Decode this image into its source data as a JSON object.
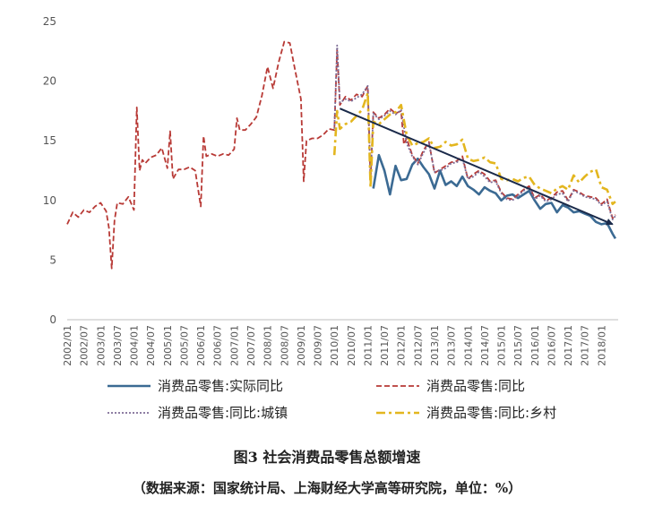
{
  "caption": {
    "title": "图3 社会消费品零售总额增速",
    "source": "（数据来源：国家统计局、上海财经大学高等研究院，单位：%）"
  },
  "chart_data": {
    "type": "line",
    "ylim": [
      0,
      25
    ],
    "yticks": [
      0,
      5,
      10,
      15,
      20,
      25
    ],
    "xlim": [
      "2002/01",
      "2018/07"
    ],
    "xticks": [
      "2002/01",
      "2002/07",
      "2003/01",
      "2003/07",
      "2004/01",
      "2004/07",
      "2005/01",
      "2005/07",
      "2006/01",
      "2006/07",
      "2007/01",
      "2007/07",
      "2008/01",
      "2008/07",
      "2009/01",
      "2009/07",
      "2010/01",
      "2010/07",
      "2011/01",
      "2011/07",
      "2012/01",
      "2012/07",
      "2013/01",
      "2013/07",
      "2014/01",
      "2014/07",
      "2015/01",
      "2015/07",
      "2016/01",
      "2016/07",
      "2017/01",
      "2017/07",
      "2018/01"
    ],
    "series": [
      {
        "name": "消费品零售:实际同比",
        "color": "#3b6a93",
        "dash": "solid",
        "x": [
          "2011/03",
          "2011/05",
          "2011/07",
          "2011/09",
          "2011/11",
          "2012/01",
          "2012/03",
          "2012/05",
          "2012/07",
          "2012/09",
          "2012/11",
          "2013/01",
          "2013/03",
          "2013/05",
          "2013/07",
          "2013/09",
          "2013/11",
          "2014/01",
          "2014/03",
          "2014/05",
          "2014/07",
          "2014/09",
          "2014/11",
          "2015/01",
          "2015/03",
          "2015/05",
          "2015/07",
          "2015/09",
          "2015/11",
          "2016/01",
          "2016/03",
          "2016/05",
          "2016/07",
          "2016/09",
          "2016/11",
          "2017/01",
          "2017/03",
          "2017/05",
          "2017/07",
          "2017/09",
          "2017/11",
          "2018/01",
          "2018/03",
          "2018/05",
          "2018/06"
        ],
        "y": [
          11.0,
          13.8,
          12.5,
          10.5,
          12.9,
          11.7,
          11.8,
          13.0,
          13.5,
          12.8,
          12.2,
          11.0,
          12.5,
          11.3,
          11.6,
          11.2,
          12.0,
          11.2,
          10.9,
          10.5,
          11.1,
          10.8,
          10.6,
          10.0,
          10.4,
          10.5,
          10.2,
          10.5,
          10.8,
          10.0,
          9.3,
          9.7,
          9.8,
          9.0,
          9.6,
          9.4,
          9.0,
          9.1,
          8.9,
          8.7,
          8.2,
          8.0,
          8.1,
          7.2,
          6.8
        ]
      },
      {
        "name": "消费品零售:同比",
        "color": "#b83a36",
        "dash": "dashed",
        "x": [
          "2002/01",
          "2002/03",
          "2002/05",
          "2002/07",
          "2002/09",
          "2002/11",
          "2003/01",
          "2003/03",
          "2003/04",
          "2003/05",
          "2003/06",
          "2003/07",
          "2003/09",
          "2003/11",
          "2004/01",
          "2004/02",
          "2004/03",
          "2004/04",
          "2004/05",
          "2004/07",
          "2004/09",
          "2004/11",
          "2005/01",
          "2005/02",
          "2005/03",
          "2005/05",
          "2005/07",
          "2005/09",
          "2005/11",
          "2006/01",
          "2006/02",
          "2006/03",
          "2006/05",
          "2006/07",
          "2006/09",
          "2006/11",
          "2007/01",
          "2007/02",
          "2007/03",
          "2007/05",
          "2007/07",
          "2007/09",
          "2007/11",
          "2008/01",
          "2008/03",
          "2008/05",
          "2008/07",
          "2008/09",
          "2008/11",
          "2009/01",
          "2009/02",
          "2009/03",
          "2009/05",
          "2009/07",
          "2009/09",
          "2009/11",
          "2010/01",
          "2010/02",
          "2010/03",
          "2010/05",
          "2010/07",
          "2010/09",
          "2010/11",
          "2011/01",
          "2011/02",
          "2011/03",
          "2011/05",
          "2011/07",
          "2011/09",
          "2011/11",
          "2012/01",
          "2012/02",
          "2012/03",
          "2012/05",
          "2012/07",
          "2012/09",
          "2012/11",
          "2013/01",
          "2013/03",
          "2013/05",
          "2013/07",
          "2013/09",
          "2013/11",
          "2014/01",
          "2014/03",
          "2014/05",
          "2014/07",
          "2014/09",
          "2014/11",
          "2015/01",
          "2015/03",
          "2015/05",
          "2015/07",
          "2015/09",
          "2015/11",
          "2016/01",
          "2016/03",
          "2016/05",
          "2016/07",
          "2016/09",
          "2016/11",
          "2017/01",
          "2017/03",
          "2017/05",
          "2017/07",
          "2017/09",
          "2017/11",
          "2018/01",
          "2018/03",
          "2018/05",
          "2018/06"
        ],
        "y": [
          8.0,
          9.0,
          8.6,
          9.2,
          9.0,
          9.5,
          9.8,
          9.1,
          7.7,
          4.3,
          8.3,
          9.8,
          9.7,
          10.3,
          9.2,
          17.8,
          12.5,
          13.4,
          13.1,
          13.6,
          13.8,
          14.4,
          12.7,
          15.8,
          11.8,
          12.6,
          12.6,
          12.8,
          12.5,
          9.5,
          15.4,
          13.7,
          13.9,
          13.7,
          13.9,
          13.8,
          14.3,
          16.9,
          15.9,
          15.9,
          16.4,
          17.0,
          18.8,
          21.2,
          19.4,
          21.6,
          23.3,
          23.2,
          20.8,
          18.5,
          11.6,
          15.0,
          15.2,
          15.2,
          15.5,
          16.0,
          15.9,
          22.6,
          18.0,
          18.7,
          18.4,
          18.9,
          18.7,
          19.6,
          11.6,
          17.4,
          16.9,
          17.2,
          17.7,
          17.3,
          17.5,
          14.7,
          15.2,
          13.8,
          13.1,
          14.2,
          14.9,
          12.3,
          12.6,
          12.9,
          13.2,
          13.3,
          13.7,
          11.8,
          12.2,
          12.5,
          12.2,
          11.6,
          11.7,
          10.7,
          10.2,
          10.1,
          10.5,
          10.9,
          11.2,
          10.2,
          10.5,
          10.0,
          10.2,
          10.7,
          10.8,
          10.0,
          10.9,
          10.7,
          10.4,
          10.3,
          10.2,
          9.7,
          10.1,
          8.5,
          8.8
        ]
      },
      {
        "name": "消费品零售:同比:城镇",
        "color": "#7e6c96",
        "dash": "dotted",
        "x": [
          "2010/01",
          "2010/02",
          "2010/03",
          "2010/05",
          "2010/07",
          "2010/09",
          "2010/11",
          "2011/01",
          "2011/02",
          "2011/03",
          "2011/05",
          "2011/07",
          "2011/09",
          "2011/11",
          "2012/01",
          "2012/03",
          "2012/05",
          "2012/07",
          "2012/09",
          "2012/11",
          "2013/01",
          "2013/03",
          "2013/05",
          "2013/07",
          "2013/09",
          "2013/11",
          "2014/01",
          "2014/03",
          "2014/05",
          "2014/07",
          "2014/09",
          "2014/11",
          "2015/01",
          "2015/03",
          "2015/05",
          "2015/07",
          "2015/09",
          "2015/11",
          "2016/01",
          "2016/03",
          "2016/05",
          "2016/07",
          "2016/09",
          "2016/11",
          "2017/01",
          "2017/03",
          "2017/05",
          "2017/07",
          "2017/09",
          "2017/11",
          "2018/01",
          "2018/03",
          "2018/05",
          "2018/06"
        ],
        "y": [
          16.0,
          23.0,
          18.2,
          18.5,
          18.3,
          18.6,
          18.9,
          19.6,
          11.9,
          17.3,
          16.8,
          17.1,
          17.5,
          17.2,
          17.6,
          14.8,
          13.7,
          13.0,
          14.0,
          14.8,
          12.4,
          12.5,
          12.7,
          13.1,
          13.2,
          13.5,
          11.8,
          12.0,
          12.4,
          12.0,
          11.5,
          11.6,
          10.6,
          10.1,
          10.0,
          10.4,
          10.8,
          11.1,
          10.1,
          10.4,
          9.9,
          10.1,
          10.5,
          10.6,
          9.9,
          10.8,
          10.6,
          10.3,
          10.2,
          10.1,
          9.6,
          9.9,
          8.4,
          8.7
        ]
      },
      {
        "name": "消费品零售:同比:乡村",
        "color": "#e3b61f",
        "dash": "dashdot",
        "x": [
          "2010/01",
          "2010/02",
          "2010/03",
          "2010/05",
          "2010/07",
          "2010/09",
          "2010/11",
          "2011/01",
          "2011/02",
          "2011/03",
          "2011/05",
          "2011/07",
          "2011/09",
          "2011/11",
          "2012/01",
          "2012/03",
          "2012/05",
          "2012/07",
          "2012/09",
          "2012/11",
          "2013/01",
          "2013/03",
          "2013/05",
          "2013/07",
          "2013/09",
          "2013/11",
          "2014/01",
          "2014/03",
          "2014/05",
          "2014/07",
          "2014/09",
          "2014/11",
          "2015/01",
          "2015/03",
          "2015/05",
          "2015/07",
          "2015/09",
          "2015/11",
          "2016/01",
          "2016/03",
          "2016/05",
          "2016/07",
          "2016/09",
          "2016/11",
          "2017/01",
          "2017/03",
          "2017/05",
          "2017/07",
          "2017/09",
          "2017/11",
          "2018/01",
          "2018/03",
          "2018/05",
          "2018/06"
        ],
        "y": [
          13.8,
          17.5,
          16.0,
          16.4,
          16.6,
          17.1,
          17.6,
          19.0,
          11.1,
          16.6,
          16.4,
          16.8,
          17.2,
          17.4,
          18.0,
          15.5,
          14.6,
          14.8,
          14.9,
          15.2,
          14.4,
          14.5,
          14.9,
          14.6,
          14.7,
          15.1,
          13.5,
          13.3,
          13.4,
          13.6,
          13.2,
          13.1,
          11.8,
          11.7,
          11.8,
          11.6,
          11.9,
          12.0,
          11.3,
          11.0,
          10.8,
          10.6,
          11.0,
          11.2,
          10.9,
          12.1,
          11.5,
          12.0,
          12.4,
          12.6,
          11.1,
          10.9,
          9.7,
          9.9
        ]
      },
      {
        "name": "",
        "color": "#1a2a4a",
        "dash": "arrow",
        "x": [
          "2010/03",
          "2018/05"
        ],
        "y": [
          17.7,
          8.0
        ]
      }
    ],
    "legend": {
      "position": "bottom",
      "entries": [
        "消费品零售:实际同比",
        "消费品零售:同比",
        "消费品零售:同比:城镇",
        "消费品零售:同比:乡村"
      ]
    },
    "grid": false
  }
}
